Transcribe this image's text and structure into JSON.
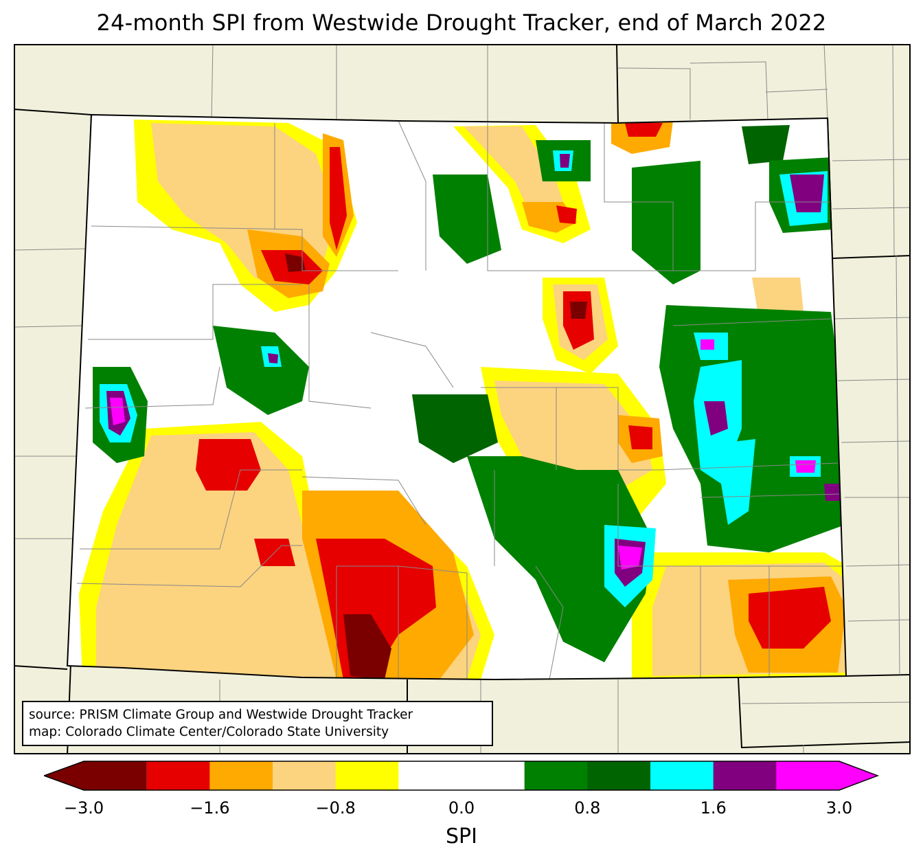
{
  "title": "24-month SPI from Westwide Drought Tracker, end of March 2022",
  "source": {
    "line1": "source: PRISM Climate Group and Westwide Drought Tracker",
    "line2": "map: Colorado Climate Center/Colorado State University"
  },
  "colors": {
    "background_land": "#f0f0dc",
    "state_fill": "#ffffff",
    "border": "#000000",
    "county_line": "#888888"
  },
  "colorbar": {
    "label": "SPI",
    "ticks": [
      "−3.0",
      "−1.6",
      "−0.8",
      "0.0",
      "0.8",
      "1.6",
      "3.0"
    ],
    "bins": [
      {
        "color": "#7a0000"
      },
      {
        "color": "#e60000"
      },
      {
        "color": "#ffaa00"
      },
      {
        "color": "#fcd37f"
      },
      {
        "color": "#ffff00"
      },
      {
        "color": "#ffffff"
      },
      {
        "color": "#ffffff"
      },
      {
        "color": "#008000"
      },
      {
        "color": "#006400"
      },
      {
        "color": "#00ffff"
      },
      {
        "color": "#800080"
      },
      {
        "color": "#ff00ff"
      }
    ]
  }
}
